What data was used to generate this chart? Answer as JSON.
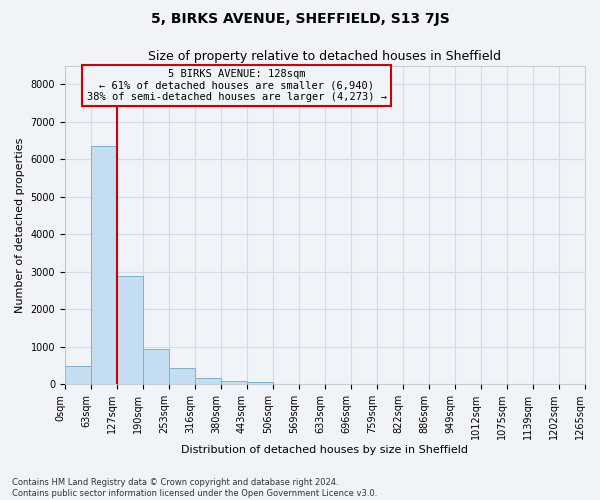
{
  "title": "5, BIRKS AVENUE, SHEFFIELD, S13 7JS",
  "subtitle": "Size of property relative to detached houses in Sheffield",
  "xlabel": "Distribution of detached houses by size in Sheffield",
  "ylabel": "Number of detached properties",
  "footnote": "Contains HM Land Registry data © Crown copyright and database right 2024.\nContains public sector information licensed under the Open Government Licence v3.0.",
  "bin_labels": [
    "0sqm",
    "63sqm",
    "127sqm",
    "190sqm",
    "253sqm",
    "316sqm",
    "380sqm",
    "443sqm",
    "506sqm",
    "569sqm",
    "633sqm",
    "696sqm",
    "759sqm",
    "822sqm",
    "886sqm",
    "949sqm",
    "1012sqm",
    "1075sqm",
    "1139sqm",
    "1202sqm",
    "1265sqm"
  ],
  "bar_values": [
    480,
    6350,
    2900,
    950,
    420,
    160,
    80,
    50,
    0,
    0,
    0,
    0,
    0,
    0,
    0,
    0,
    0,
    0,
    0,
    0
  ],
  "bar_color": "#c5ddf0",
  "bar_edge_color": "#7ab3d4",
  "grid_color": "#d0dce8",
  "background_color": "#f0f4f8",
  "vline_color": "#cc0000",
  "ylim": [
    0,
    8500
  ],
  "yticks": [
    0,
    1000,
    2000,
    3000,
    4000,
    5000,
    6000,
    7000,
    8000
  ],
  "annotation_title": "5 BIRKS AVENUE: 128sqm",
  "annotation_line1": "← 61% of detached houses are smaller (6,940)",
  "annotation_line2": "38% of semi-detached houses are larger (4,273) →",
  "annotation_box_color": "#cc0000",
  "title_fontsize": 10,
  "subtitle_fontsize": 9,
  "axis_label_fontsize": 8,
  "tick_fontsize": 7,
  "annotation_fontsize": 7.5
}
